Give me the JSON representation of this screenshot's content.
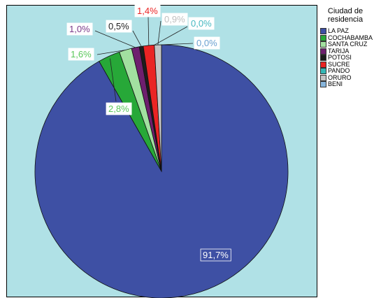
{
  "chart_data": {
    "type": "pie",
    "legend_title": [
      "Ciudad de",
      "residencia"
    ],
    "legend_position": "right",
    "slices": [
      {
        "name": "LA PAZ",
        "value": 91.7,
        "label": "91,7%",
        "color": "#3e50a4",
        "label_color": "#ffffff"
      },
      {
        "name": "COCHABAMBA",
        "value": 2.8,
        "label": "2,8%",
        "color": "#27a838",
        "label_color": "#5ac85a"
      },
      {
        "name": "SANTA CRUZ",
        "value": 1.6,
        "label": "1,6%",
        "color": "#a2e0a0",
        "label_color": "#5ac85a"
      },
      {
        "name": "TARIJA",
        "value": 1.0,
        "label": "1,0%",
        "color": "#6e1f6e",
        "label_color": "#7a3a8a"
      },
      {
        "name": "POTOSI",
        "value": 0.5,
        "label": "0,5%",
        "color": "#1d1d1d",
        "label_color": "#222222"
      },
      {
        "name": "SUCRE",
        "value": 1.4,
        "label": "1,4%",
        "color": "#ea2424",
        "label_color": "#ea2424"
      },
      {
        "name": "PANDO",
        "value": 0.0,
        "label": "0,0%",
        "color": "#35b7b5",
        "label_color": "#45b8c0"
      },
      {
        "name": "ORURO",
        "value": 0.9,
        "label": "0,9%",
        "color": "#c4c4c4",
        "label_color": "#bfbfbf"
      },
      {
        "name": "BENI",
        "value": 0.0,
        "label": "0,0%",
        "color": "#88b6dc",
        "label_color": "#6aa0d0"
      }
    ]
  }
}
